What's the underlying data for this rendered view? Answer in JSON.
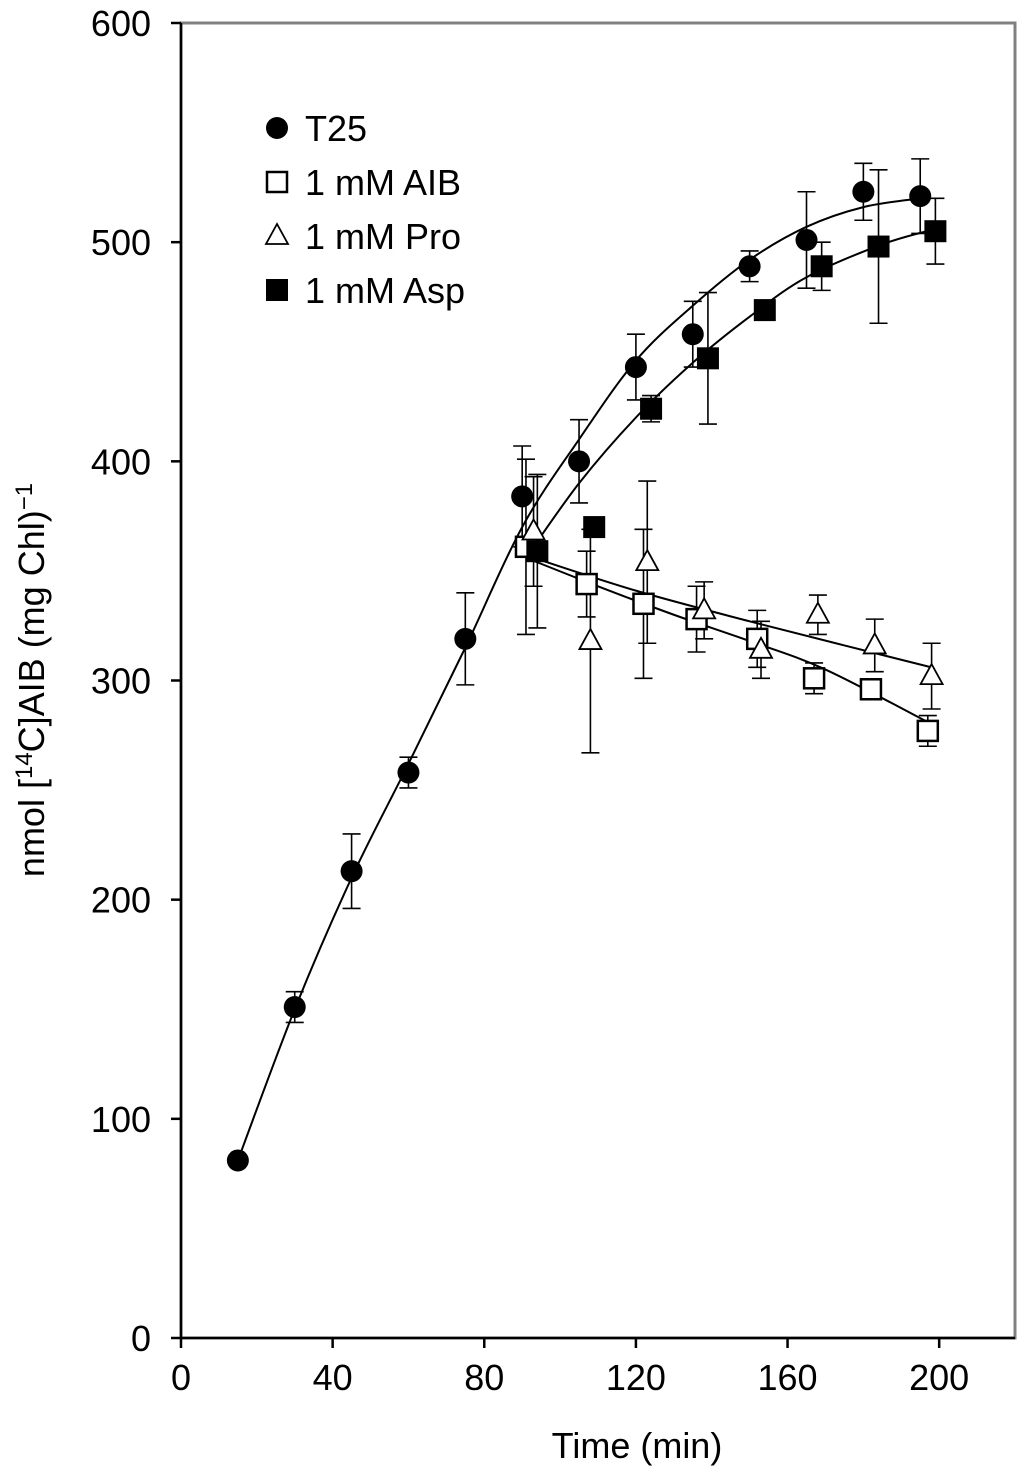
{
  "chart_data": {
    "type": "scatter",
    "xlabel": "Time (min)",
    "ylabel_parts": {
      "prefix": "nmol [",
      "superscript": "14",
      "suffix": "C]AIB (mg Chl)",
      "exponent": "−1"
    },
    "xlim": [
      0,
      220
    ],
    "ylim": [
      0,
      600
    ],
    "xticks": [
      0,
      40,
      80,
      120,
      160,
      200
    ],
    "yticks": [
      0,
      100,
      200,
      300,
      400,
      500,
      600
    ],
    "legend_position": "top-left",
    "grid": false,
    "series": [
      {
        "name": "T25",
        "marker": "filled-circle",
        "x": [
          15,
          30,
          45,
          60,
          75,
          90,
          105,
          120,
          135,
          150,
          165,
          180,
          195
        ],
        "y": [
          81,
          151,
          213,
          258,
          319,
          384,
          400,
          443,
          458,
          489,
          501,
          523,
          521
        ],
        "err": [
          0,
          7,
          17,
          7,
          21,
          23,
          19,
          15,
          15,
          7,
          22,
          13,
          17
        ],
        "fit": [
          [
            15,
            81
          ],
          [
            30,
            150
          ],
          [
            45,
            210
          ],
          [
            60,
            262
          ],
          [
            75,
            315
          ],
          [
            90,
            370
          ],
          [
            105,
            410
          ],
          [
            120,
            446
          ],
          [
            135,
            471
          ],
          [
            150,
            492
          ],
          [
            165,
            507
          ],
          [
            180,
            516
          ],
          [
            195,
            520
          ]
        ]
      },
      {
        "name": "1 mM AIB",
        "marker": "open-square",
        "x": [
          91,
          107,
          122,
          136,
          152,
          167,
          182,
          197
        ],
        "y": [
          361,
          344,
          335,
          328,
          319,
          301,
          296,
          277
        ],
        "err": [
          40,
          15,
          34,
          15,
          13,
          7,
          0,
          7
        ],
        "fit": [
          [
            91,
            356
          ],
          [
            110,
            343
          ],
          [
            130,
            330
          ],
          [
            150,
            318
          ],
          [
            170,
            305
          ],
          [
            197,
            281
          ]
        ]
      },
      {
        "name": "1 mM Pro",
        "marker": "open-triangle",
        "x": [
          93,
          108,
          123,
          138,
          153,
          168,
          183,
          198
        ],
        "y": [
          368,
          318,
          354,
          332,
          314,
          330,
          316,
          302
        ],
        "err": [
          25,
          51,
          37,
          13,
          13,
          9,
          12,
          15
        ],
        "fit": [
          [
            93,
            356
          ],
          [
            120,
            341
          ],
          [
            150,
            327
          ],
          [
            175,
            316
          ],
          [
            198,
            306
          ]
        ]
      },
      {
        "name": "1 mM Asp",
        "marker": "filled-square",
        "x": [
          94,
          109,
          124,
          139,
          154,
          169,
          184,
          199
        ],
        "y": [
          359,
          370,
          424,
          447,
          469,
          489,
          498,
          505
        ],
        "err": [
          35,
          0,
          6,
          30,
          0,
          11,
          35,
          15
        ],
        "fit": [
          [
            91,
            356
          ],
          [
            105,
            390
          ],
          [
            120,
            420
          ],
          [
            135,
            445
          ],
          [
            150,
            466
          ],
          [
            165,
            484
          ],
          [
            185,
            499
          ],
          [
            199,
            506
          ]
        ]
      }
    ]
  }
}
